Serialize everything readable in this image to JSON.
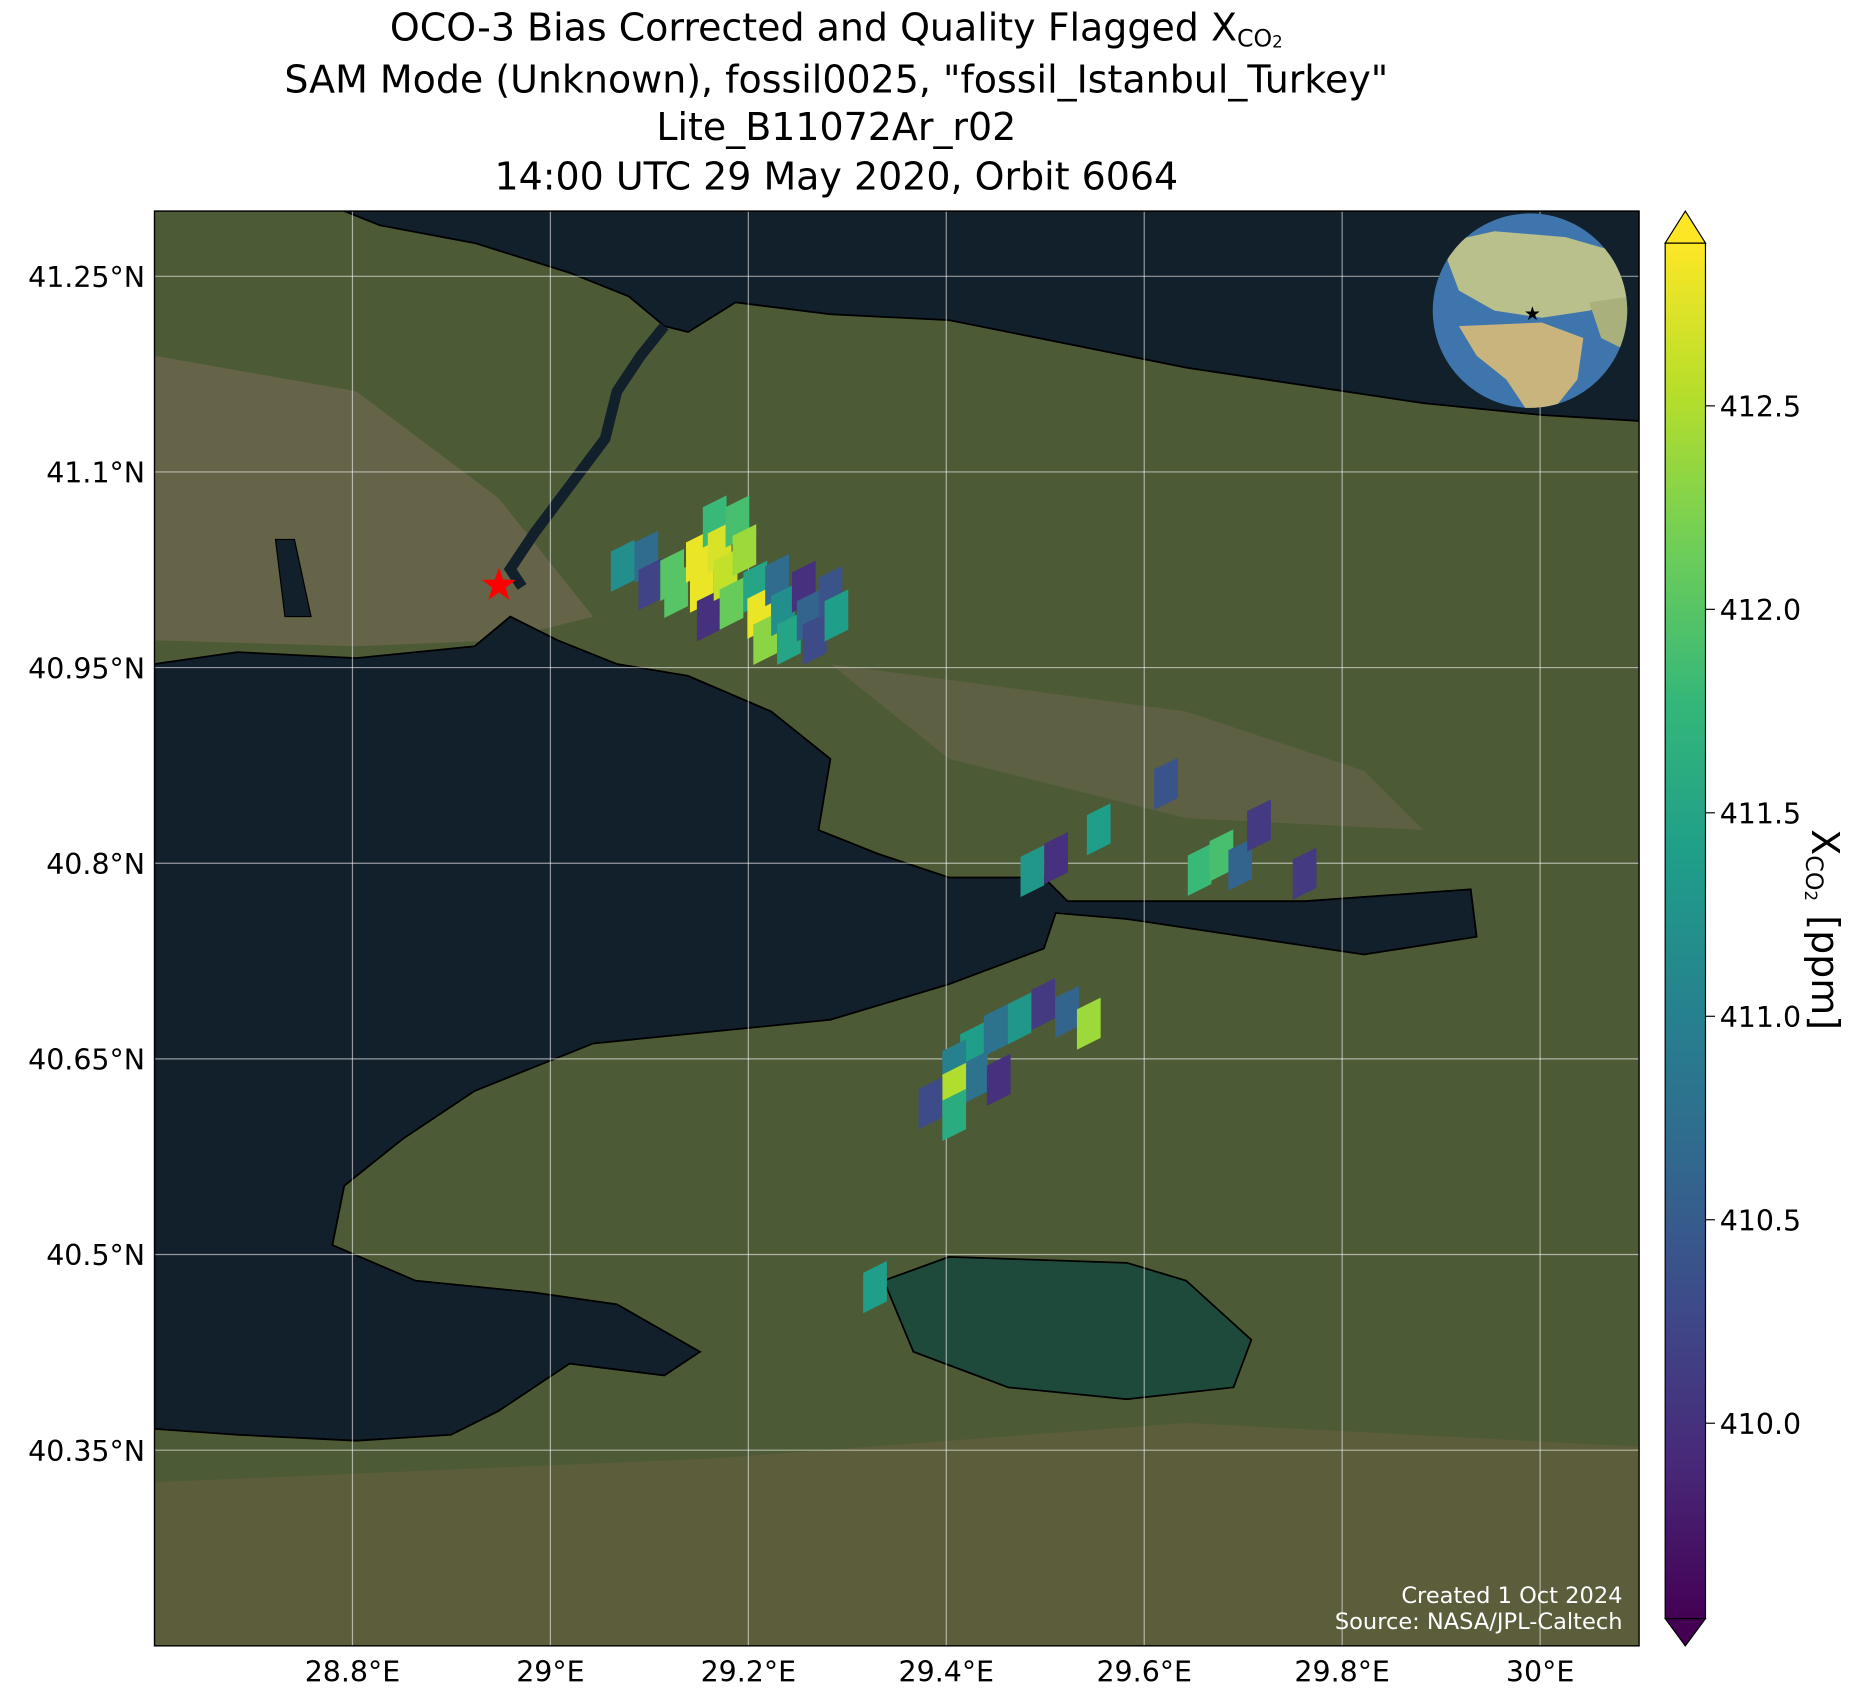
{
  "chart_data": {
    "type": "map",
    "title_lines": [
      {
        "text": "OCO-3 Bias Corrected and Quality Flagged X",
        "sub": "CO",
        "subsub": "2"
      },
      "SAM Mode (Unknown), fossil0025, \"fossil_Istanbul_Turkey\"",
      "Lite_B11072Ar_r02",
      "14:00 UTC 29 May 2020, Orbit 6064"
    ],
    "xlim": [
      28.6,
      30.1
    ],
    "ylim": [
      40.2,
      41.3
    ],
    "xticks": [
      {
        "value": 28.8,
        "label": "28.8°E"
      },
      {
        "value": 29,
        "label": "29°E"
      },
      {
        "value": 29.2,
        "label": "29.2°E"
      },
      {
        "value": 29.4,
        "label": "29.4°E"
      },
      {
        "value": 29.6,
        "label": "29.6°E"
      },
      {
        "value": 29.8,
        "label": "29.8°E"
      },
      {
        "value": 30,
        "label": "30°E"
      }
    ],
    "yticks": [
      {
        "value": 40.35,
        "label": "40.35°N"
      },
      {
        "value": 40.5,
        "label": "40.5°N"
      },
      {
        "value": 40.65,
        "label": "40.65°N"
      },
      {
        "value": 40.8,
        "label": "40.8°N"
      },
      {
        "value": 40.95,
        "label": "40.95°N"
      },
      {
        "value": 41.1,
        "label": "41.1°N"
      },
      {
        "value": 41.25,
        "label": "41.25°N"
      }
    ],
    "grid": true,
    "colormap": "viridis",
    "clim": [
      409.52,
      412.9
    ],
    "cticks": [
      {
        "value": 410,
        "label": "410.0"
      },
      410.5,
      {
        "value": 411,
        "label": "411.0"
      },
      411.5,
      {
        "value": 412,
        "label": "412.0"
      },
      412.5
    ],
    "colorbar_label": {
      "base": "X",
      "sub": "CO",
      "subsub": "2",
      "unit": "[ppm]"
    },
    "footprints": {
      "lon": [
        29.073,
        29.097,
        29.101,
        29.123,
        29.127,
        29.149,
        29.153,
        29.16,
        29.166,
        29.171,
        29.177,
        29.189,
        29.196,
        29.183,
        29.207,
        29.211,
        29.217,
        29.229,
        29.235,
        29.241,
        29.256,
        29.261,
        29.267,
        29.283,
        29.289,
        29.622,
        29.554,
        29.487,
        29.511,
        29.656,
        29.678,
        29.697,
        29.716,
        29.762,
        29.498,
        29.522,
        29.544,
        29.474,
        29.45,
        29.426,
        29.408,
        29.43,
        29.453,
        29.408,
        29.384,
        29.408,
        29.328
      ],
      "lat": [
        41.028,
        41.035,
        41.014,
        41.021,
        41.008,
        41.035,
        41.012,
        40.99,
        41.062,
        41.042,
        41.021,
        41.062,
        41.04,
        40.999,
        41.012,
        40.992,
        40.972,
        41.017,
        40.994,
        40.972,
        41.012,
        40.99,
        40.972,
        41.008,
        40.99,
        40.861,
        40.826,
        40.794,
        40.804,
        40.795,
        40.806,
        40.799,
        40.829,
        40.792,
        40.692,
        40.686,
        40.677,
        40.681,
        40.672,
        40.658,
        40.645,
        40.636,
        40.634,
        40.627,
        40.616,
        40.607,
        40.475
      ],
      "values": [
        411.2,
        410.7,
        410.2,
        412.0,
        412.0,
        412.8,
        412.8,
        410.0,
        411.8,
        412.7,
        412.6,
        411.9,
        412.4,
        412.1,
        411.5,
        412.8,
        412.3,
        410.7,
        411.2,
        411.5,
        410.0,
        410.6,
        410.3,
        410.4,
        411.4,
        410.4,
        411.4,
        411.3,
        410.0,
        411.8,
        411.9,
        410.6,
        410.1,
        410.1,
        410.1,
        410.6,
        412.4,
        411.3,
        410.8,
        411.4,
        411.0,
        410.8,
        410.0,
        412.5,
        410.3,
        411.6,
        411.4
      ]
    },
    "target": {
      "lon": 28.948,
      "lat": 41.013,
      "color": "#ff0000"
    },
    "annotations": [
      "Created 1 Oct 2024",
      "Source: NASA/JPL-Caltech"
    ]
  }
}
